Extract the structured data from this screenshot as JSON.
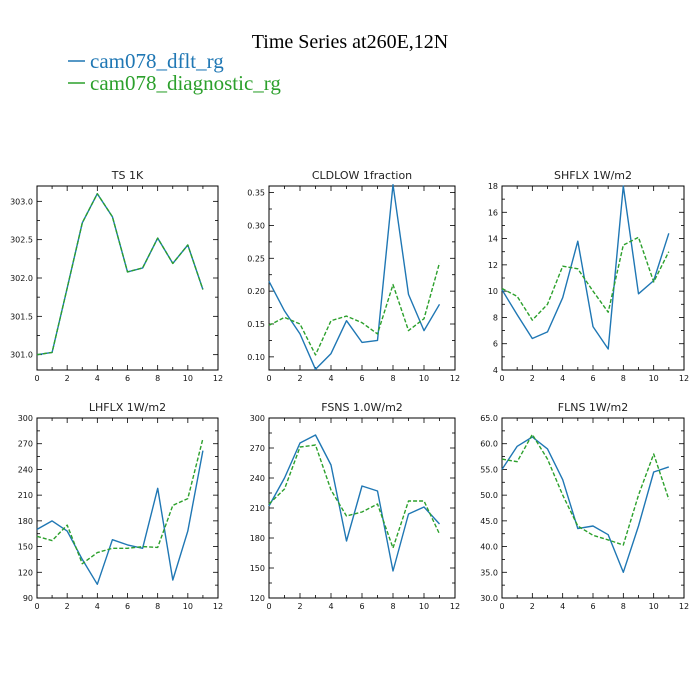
{
  "title": "Time Series at260E,12N",
  "legend": [
    {
      "label": "cam078_dflt_rg",
      "color": "#1f77b4"
    },
    {
      "label": "cam078_diagnostic_rg",
      "color": "#2ca02c"
    }
  ],
  "chart_data": [
    {
      "type": "line",
      "title": "TS   1K",
      "xlim": [
        0,
        12
      ],
      "ylim": [
        300.8,
        303.2
      ],
      "xticks": [
        0,
        2,
        4,
        6,
        8,
        10,
        12
      ],
      "yticks": [
        301.0,
        301.5,
        302.0,
        302.5,
        303.0
      ],
      "ytick_labels": [
        "301.0",
        "301.5",
        "302.0",
        "302.5",
        "303.0"
      ],
      "x": [
        0,
        1,
        2,
        3,
        4,
        5,
        6,
        7,
        8,
        9,
        10,
        11
      ],
      "series": [
        {
          "name": "cam078_dflt_rg",
          "color": "#1f77b4",
          "dashed": false,
          "values": [
            301.0,
            301.03,
            301.87,
            302.72,
            303.1,
            302.8,
            302.08,
            302.13,
            302.52,
            302.19,
            302.43,
            301.85
          ]
        },
        {
          "name": "cam078_diagnostic_rg",
          "color": "#2ca02c",
          "dashed": true,
          "values": [
            301.0,
            301.03,
            301.87,
            302.72,
            303.1,
            302.8,
            302.08,
            302.13,
            302.52,
            302.19,
            302.43,
            301.85
          ]
        }
      ]
    },
    {
      "type": "line",
      "title": "CLDLOW   1fraction",
      "xlim": [
        0,
        12
      ],
      "ylim": [
        0.08,
        0.36
      ],
      "xticks": [
        0,
        2,
        4,
        6,
        8,
        10,
        12
      ],
      "yticks": [
        0.1,
        0.15,
        0.2,
        0.25,
        0.3,
        0.35
      ],
      "ytick_labels": [
        "0.10",
        "0.15",
        "0.20",
        "0.25",
        "0.30",
        "0.35"
      ],
      "x": [
        0,
        1,
        2,
        3,
        4,
        5,
        6,
        7,
        8,
        9,
        10,
        11
      ],
      "series": [
        {
          "name": "cam078_dflt_rg",
          "color": "#1f77b4",
          "dashed": false,
          "values": [
            0.215,
            0.17,
            0.135,
            0.081,
            0.105,
            0.155,
            0.122,
            0.125,
            0.362,
            0.195,
            0.14,
            0.18
          ]
        },
        {
          "name": "cam078_diagnostic_rg",
          "color": "#2ca02c",
          "dashed": true,
          "values": [
            0.148,
            0.16,
            0.15,
            0.103,
            0.155,
            0.162,
            0.152,
            0.135,
            0.21,
            0.14,
            0.158,
            0.243
          ]
        }
      ]
    },
    {
      "type": "line",
      "title": "SHFLX   1W/m2",
      "xlim": [
        0,
        12
      ],
      "ylim": [
        4,
        18
      ],
      "xticks": [
        0,
        2,
        4,
        6,
        8,
        10,
        12
      ],
      "yticks": [
        4,
        6,
        8,
        10,
        12,
        14,
        16,
        18
      ],
      "ytick_labels": [
        "4",
        "6",
        "8",
        "10",
        "12",
        "14",
        "16",
        "18"
      ],
      "x": [
        0,
        1,
        2,
        3,
        4,
        5,
        6,
        7,
        8,
        9,
        10,
        11
      ],
      "series": [
        {
          "name": "cam078_dflt_rg",
          "color": "#1f77b4",
          "dashed": false,
          "values": [
            10.1,
            8.2,
            6.4,
            6.9,
            9.5,
            13.8,
            7.3,
            5.6,
            18.0,
            9.8,
            10.8,
            14.4
          ]
        },
        {
          "name": "cam078_diagnostic_rg",
          "color": "#2ca02c",
          "dashed": true,
          "values": [
            10.2,
            9.6,
            7.8,
            9.0,
            11.9,
            11.7,
            10.0,
            8.4,
            13.5,
            14.1,
            10.7,
            13.0
          ]
        }
      ]
    },
    {
      "type": "line",
      "title": "LHFLX   1W/m2",
      "xlim": [
        0,
        12
      ],
      "ylim": [
        90,
        300
      ],
      "xticks": [
        0,
        2,
        4,
        6,
        8,
        10,
        12
      ],
      "yticks": [
        90,
        120,
        150,
        180,
        210,
        240,
        270,
        300
      ],
      "ytick_labels": [
        "90",
        "120",
        "150",
        "180",
        "210",
        "240",
        "270",
        "300"
      ],
      "x": [
        0,
        1,
        2,
        3,
        4,
        5,
        6,
        7,
        8,
        9,
        10,
        11
      ],
      "series": [
        {
          "name": "cam078_dflt_rg",
          "color": "#1f77b4",
          "dashed": false,
          "values": [
            170,
            180,
            168,
            135,
            106,
            158,
            152,
            148,
            218,
            111,
            168,
            262
          ]
        },
        {
          "name": "cam078_diagnostic_rg",
          "color": "#2ca02c",
          "dashed": true,
          "values": [
            162,
            157,
            175,
            130,
            143,
            148,
            148,
            150,
            149,
            198,
            206,
            276
          ]
        }
      ]
    },
    {
      "type": "line",
      "title": "FSNS   1.0W/m2",
      "xlim": [
        0,
        12
      ],
      "ylim": [
        120,
        300
      ],
      "xticks": [
        0,
        2,
        4,
        6,
        8,
        10,
        12
      ],
      "yticks": [
        120,
        150,
        180,
        210,
        240,
        270,
        300
      ],
      "ytick_labels": [
        "120",
        "150",
        "180",
        "210",
        "240",
        "270",
        "300"
      ],
      "x": [
        0,
        1,
        2,
        3,
        4,
        5,
        6,
        7,
        8,
        9,
        10,
        11
      ],
      "series": [
        {
          "name": "cam078_dflt_rg",
          "color": "#1f77b4",
          "dashed": false,
          "values": [
            212,
            240,
            275,
            283,
            253,
            177,
            232,
            227,
            147,
            204,
            211,
            194
          ]
        },
        {
          "name": "cam078_diagnostic_rg",
          "color": "#2ca02c",
          "dashed": true,
          "values": [
            214,
            229,
            271,
            273,
            228,
            202,
            206,
            214,
            170,
            217,
            217,
            184
          ]
        }
      ]
    },
    {
      "type": "line",
      "title": "FLNS   1W/m2",
      "xlim": [
        0,
        12
      ],
      "ylim": [
        30,
        65
      ],
      "xticks": [
        0,
        2,
        4,
        6,
        8,
        10,
        12
      ],
      "yticks": [
        30,
        35,
        40,
        45,
        50,
        55,
        60,
        65
      ],
      "ytick_labels": [
        "30.0",
        "35.0",
        "40.0",
        "45.0",
        "50.0",
        "55.0",
        "60.0",
        "65.0"
      ],
      "x": [
        0,
        1,
        2,
        3,
        4,
        5,
        6,
        7,
        8,
        9,
        10,
        11
      ],
      "series": [
        {
          "name": "cam078_dflt_rg",
          "color": "#1f77b4",
          "dashed": false,
          "values": [
            55.0,
            59.5,
            61.3,
            59.0,
            53.0,
            43.5,
            44.0,
            42.3,
            35.0,
            44.0,
            54.5,
            55.5
          ]
        },
        {
          "name": "cam078_diagnostic_rg",
          "color": "#2ca02c",
          "dashed": true,
          "values": [
            57.0,
            56.5,
            61.8,
            57.0,
            50.0,
            44.0,
            42.2,
            41.3,
            40.3,
            50.0,
            58.0,
            49.2
          ]
        }
      ]
    }
  ]
}
